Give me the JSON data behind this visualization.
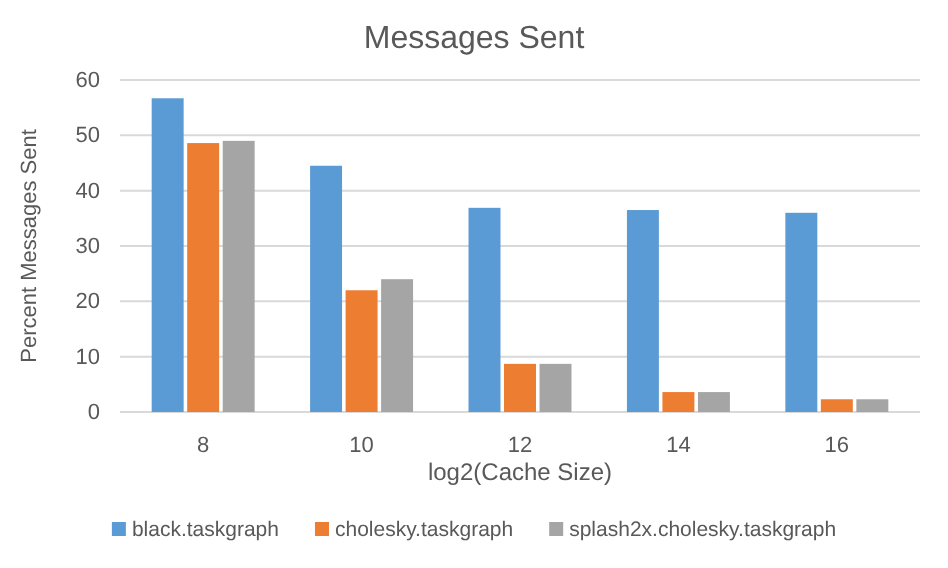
{
  "chart_data": {
    "type": "bar",
    "title": "Messages Sent",
    "xlabel": "log2(Cache Size)",
    "ylabel": "Percent Messages Sent",
    "categories": [
      "8",
      "10",
      "12",
      "14",
      "16"
    ],
    "series": [
      {
        "name": "black.taskgraph",
        "color": "#5b9bd5",
        "values": [
          56.7,
          44.5,
          36.9,
          36.5,
          36
        ]
      },
      {
        "name": "cholesky.taskgraph",
        "color": "#ed7d31",
        "values": [
          48.6,
          22,
          8.7,
          3.6,
          2.3
        ]
      },
      {
        "name": "splash2x.cholesky.taskgraph",
        "color": "#a5a5a5",
        "values": [
          49,
          24,
          8.7,
          3.6,
          2.3
        ]
      }
    ],
    "ylim": [
      0,
      60
    ],
    "yticks": [
      0,
      10,
      20,
      30,
      40,
      50,
      60
    ],
    "grid": "y",
    "legend": "bottom"
  }
}
